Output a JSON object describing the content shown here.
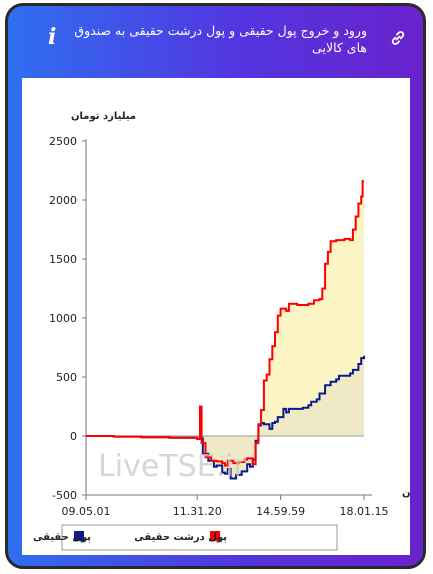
{
  "header": {
    "title": "ورود و خروج پول حقیقی و پول درشت حقیقی به صندوق های کالایی",
    "info_icon": "info-icon",
    "link_icon": "link-icon"
  },
  "colors": {
    "card_gradient_start": "#2f6ff0",
    "card_gradient_end": "#6a22cc",
    "series_real_money": "#0b1a8c",
    "series_big_money": "#ff0000",
    "fill_big_money": "#fbf4c4",
    "fill_real_money": "#efe9c6"
  },
  "watermark": "LiveTSE.ir",
  "chart_data": {
    "type": "area",
    "ylabel": "میلیارد تومان",
    "xlabel": "زمان",
    "ylim": [
      -500,
      2500
    ],
    "yticks": [
      -500,
      0,
      500,
      1000,
      1500,
      2000,
      2500
    ],
    "xlim": [
      0,
      100
    ],
    "xticks": [
      {
        "label": "09.05.01",
        "x": 0
      },
      {
        "label": "11.31.20",
        "x": 40
      },
      {
        "label": "14.59.59",
        "x": 70
      },
      {
        "label": "18.01.15",
        "x": 100
      }
    ],
    "legend_position": "bottom",
    "series": [
      {
        "name": "پول درشت حقیقی",
        "points": [
          [
            0,
            0
          ],
          [
            10,
            -5
          ],
          [
            20,
            -10
          ],
          [
            30,
            -15
          ],
          [
            40,
            -25
          ],
          [
            41,
            250
          ],
          [
            41.6,
            -60
          ],
          [
            43,
            -180
          ],
          [
            45,
            -210
          ],
          [
            47,
            -215
          ],
          [
            49,
            -230
          ],
          [
            50,
            -250
          ],
          [
            51,
            -210
          ],
          [
            53,
            -230
          ],
          [
            55,
            -220
          ],
          [
            57,
            -200
          ],
          [
            58,
            -190
          ],
          [
            60,
            -240
          ],
          [
            61,
            -60
          ],
          [
            62,
            100
          ],
          [
            63,
            220
          ],
          [
            64,
            470
          ],
          [
            65,
            520
          ],
          [
            66,
            650
          ],
          [
            67,
            760
          ],
          [
            68,
            880
          ],
          [
            69,
            1020
          ],
          [
            70,
            1080
          ],
          [
            72,
            1060
          ],
          [
            73,
            1120
          ],
          [
            76,
            1110
          ],
          [
            78,
            1110
          ],
          [
            80,
            1120
          ],
          [
            82,
            1150
          ],
          [
            84,
            1160
          ],
          [
            85,
            1250
          ],
          [
            86,
            1460
          ],
          [
            87,
            1560
          ],
          [
            88,
            1650
          ],
          [
            90,
            1660
          ],
          [
            93,
            1670
          ],
          [
            95,
            1660
          ],
          [
            96,
            1750
          ],
          [
            97,
            1860
          ],
          [
            98,
            1970
          ],
          [
            99,
            2030
          ],
          [
            99.5,
            2160
          ],
          [
            100,
            2160
          ]
        ]
      },
      {
        "name": "پول حقیقی",
        "points": [
          [
            0,
            0
          ],
          [
            10,
            -5
          ],
          [
            20,
            -10
          ],
          [
            30,
            -15
          ],
          [
            40,
            -25
          ],
          [
            41,
            -20
          ],
          [
            42,
            -150
          ],
          [
            44,
            -210
          ],
          [
            46,
            -260
          ],
          [
            47,
            -250
          ],
          [
            49,
            -310
          ],
          [
            50,
            -320
          ],
          [
            51,
            -280
          ],
          [
            52,
            -360
          ],
          [
            54,
            -330
          ],
          [
            56,
            -300
          ],
          [
            58,
            -240
          ],
          [
            59,
            -260
          ],
          [
            60,
            -200
          ],
          [
            61,
            -40
          ],
          [
            62,
            90
          ],
          [
            63,
            110
          ],
          [
            64,
            100
          ],
          [
            66,
            60
          ],
          [
            67,
            110
          ],
          [
            68,
            120
          ],
          [
            69,
            160
          ],
          [
            70,
            160
          ],
          [
            71,
            230
          ],
          [
            72,
            200
          ],
          [
            73,
            230
          ],
          [
            75,
            230
          ],
          [
            78,
            240
          ],
          [
            80,
            260
          ],
          [
            81,
            290
          ],
          [
            83,
            310
          ],
          [
            84,
            360
          ],
          [
            86,
            430
          ],
          [
            88,
            460
          ],
          [
            90,
            480
          ],
          [
            91,
            510
          ],
          [
            93,
            510
          ],
          [
            95,
            530
          ],
          [
            96,
            560
          ],
          [
            98,
            610
          ],
          [
            99,
            660
          ],
          [
            100,
            680
          ]
        ]
      }
    ]
  }
}
